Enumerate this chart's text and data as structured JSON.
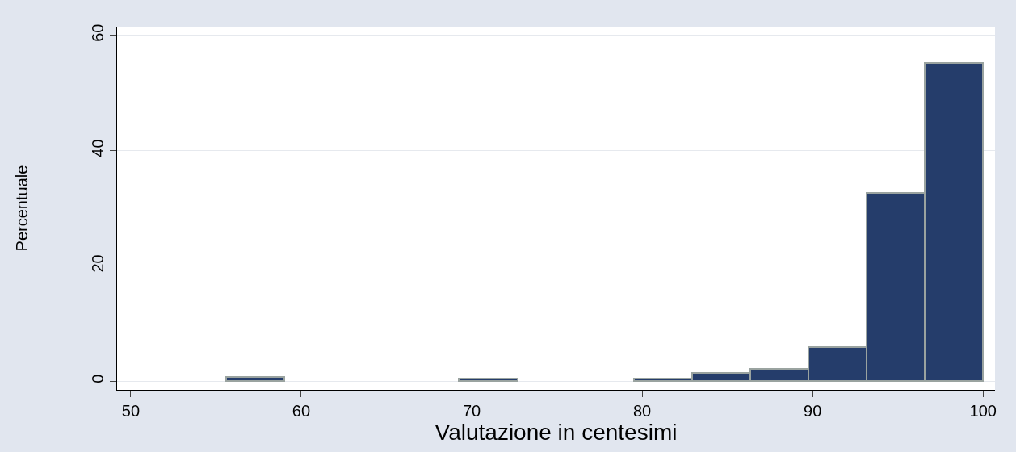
{
  "chart_data": {
    "type": "histogram",
    "xlabel": "Valutazione in centesimi",
    "ylabel": "Percentuale",
    "bins": [
      55.6,
      59.02,
      62.43,
      65.85,
      69.26,
      72.68,
      76.09,
      79.51,
      82.92,
      86.34,
      89.75,
      93.17,
      96.58,
      100
    ],
    "values": [
      0.8,
      0,
      0,
      0,
      0.4,
      0,
      0,
      0.4,
      1.4,
      2.1,
      5.9,
      32.7,
      55.2
    ],
    "color": "#253d6b",
    "xlim": [
      49.2,
      100.7
    ],
    "xticks": [
      50,
      60,
      70,
      80,
      90,
      100
    ],
    "ylim": [
      -1.5,
      61.5
    ],
    "yticks": [
      0,
      20,
      40,
      60
    ],
    "grid": "y",
    "legend": false
  }
}
